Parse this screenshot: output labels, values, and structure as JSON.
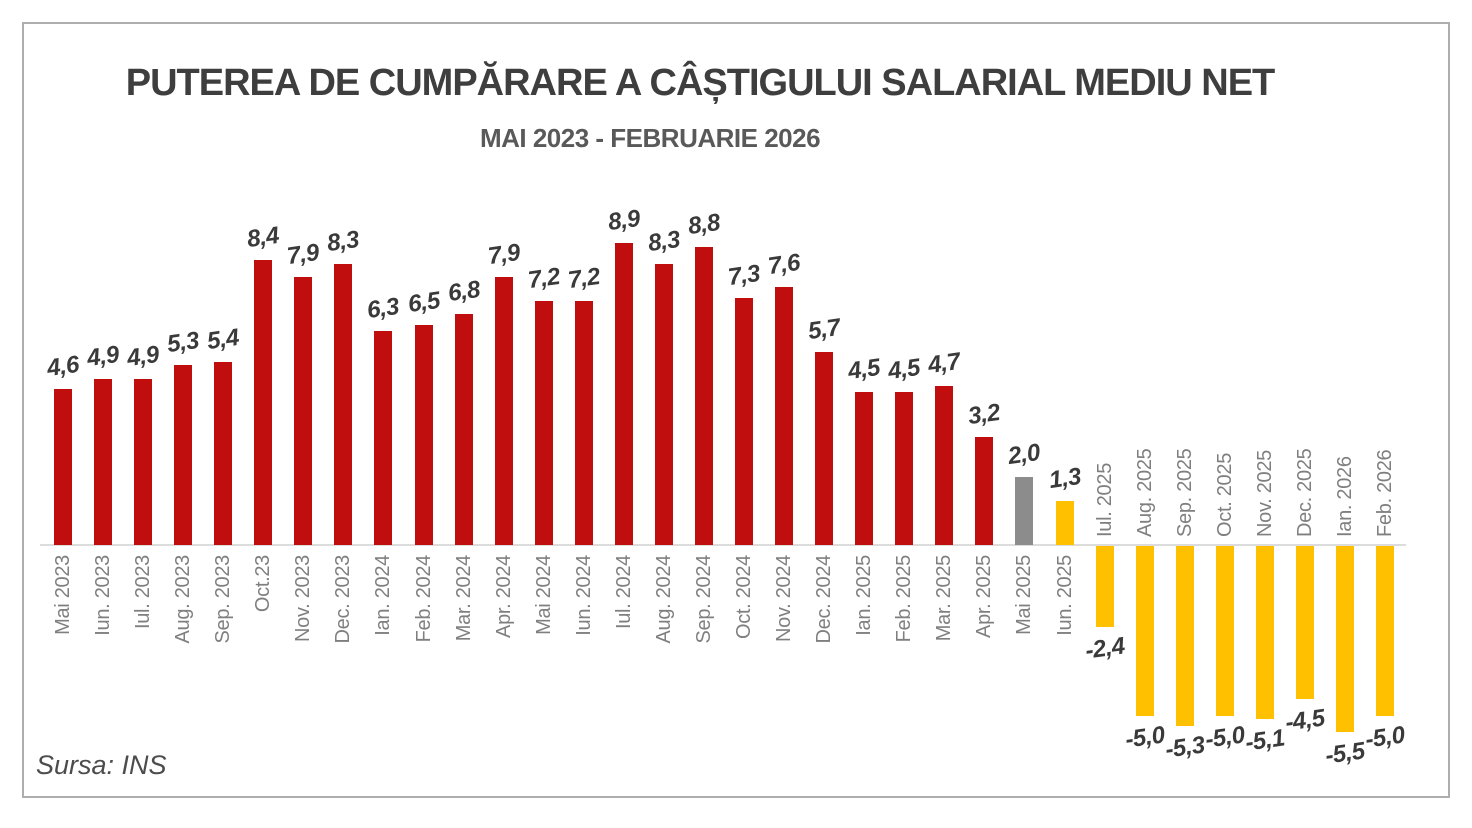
{
  "chart_data": {
    "type": "bar",
    "title": "PUTEREA DE CUMPĂRARE A CÂȘTIGULUI SALARIAL MEDIU NET",
    "subtitle": "MAI 2023 - FEBRUARIE 2026",
    "source": "Sursa: INS",
    "grid": false,
    "legend": false,
    "ylim": [
      -5.5,
      8.9
    ],
    "baseline": 0,
    "categories": [
      "Mai 2023",
      "Iun. 2023",
      "Iul. 2023",
      "Aug. 2023",
      "Sep. 2023",
      "Oct.23",
      "Nov. 2023",
      "Dec. 2023",
      "Ian. 2024",
      "Feb. 2024",
      "Mar. 2024",
      "Apr. 2024",
      "Mai 2024",
      "Iun. 2024",
      "Iul. 2024",
      "Aug. 2024",
      "Sep. 2024",
      "Oct. 2024",
      "Nov. 2024",
      "Dec. 2024",
      "Ian. 2025",
      "Feb. 2025",
      "Mar. 2025",
      "Apr. 2025",
      "Mai 2025",
      "Iun. 2025",
      "Iul. 2025",
      "Aug. 2025",
      "Sep. 2025",
      "Oct. 2025",
      "Nov. 2025",
      "Dec. 2025",
      "Ian. 2026",
      "Feb. 2026"
    ],
    "values": [
      4.6,
      4.9,
      4.9,
      5.3,
      5.4,
      8.4,
      7.9,
      8.3,
      6.3,
      6.5,
      6.8,
      7.9,
      7.2,
      7.2,
      8.9,
      8.3,
      8.8,
      7.3,
      7.6,
      5.7,
      4.5,
      4.5,
      4.7,
      3.2,
      2.0,
      1.3,
      -2.4,
      -5.0,
      -5.3,
      -5.0,
      -5.1,
      -4.5,
      -5.5,
      -5.0
    ],
    "value_labels": [
      "4,6",
      "4,9",
      "4,9",
      "5,3",
      "5,4",
      "8,4",
      "7,9",
      "8,3",
      "6,3",
      "6,5",
      "6,8",
      "7,9",
      "7,2",
      "7,2",
      "8,9",
      "8,3",
      "8,8",
      "7,3",
      "7,6",
      "5,7",
      "4,5",
      "4,5",
      "4,7",
      "3,2",
      "2,0",
      "1,3",
      "-2,4",
      "-5,0",
      "-5,3",
      "-5,0",
      "-5,1",
      "-4,5",
      "-5,5",
      "-5,0"
    ],
    "bar_colors": [
      "red",
      "red",
      "red",
      "red",
      "red",
      "red",
      "red",
      "red",
      "red",
      "red",
      "red",
      "red",
      "red",
      "red",
      "red",
      "red",
      "red",
      "red",
      "red",
      "red",
      "red",
      "red",
      "red",
      "red",
      "gray",
      "gold",
      "gold",
      "gold",
      "gold",
      "gold",
      "gold",
      "gold",
      "gold",
      "gold"
    ],
    "palette": {
      "red": "#C00D0D",
      "gray": "#8C8C8C",
      "gold": "#FFC000"
    },
    "text_colors": {
      "title": "#3e3e3e",
      "subtitle": "#595959",
      "value_label": "#3a3a3a",
      "category_label": "#7f7f7f",
      "source": "#4c4c4c"
    },
    "axis_color": "#dcdcdc",
    "frame_border_color": "#aeaeae"
  }
}
